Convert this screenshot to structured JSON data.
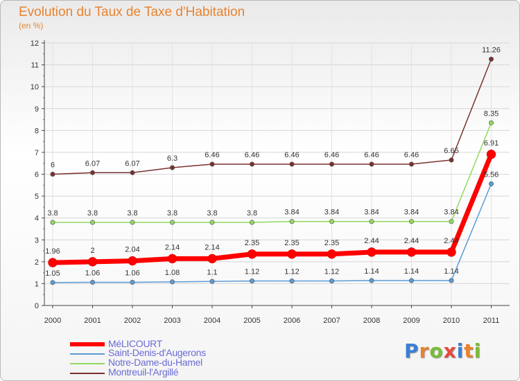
{
  "header": {
    "title": "Evolution du Taux de Taxe d'Habitation",
    "subtitle": "(en %)"
  },
  "logo": {
    "text": "Proxiti",
    "colors": [
      "#3a7fd5",
      "#e8832e",
      "#7bbb3a",
      "#e84a3a",
      "#3a7fd5",
      "#e8832e",
      "#7bbb3a"
    ]
  },
  "chart_data": {
    "type": "line",
    "title": "Evolution du Taux de Taxe d'Habitation",
    "subtitle": "(en %)",
    "xlabel": "",
    "ylabel": "",
    "x": [
      "2000",
      "2001",
      "2002",
      "2003",
      "2004",
      "2005",
      "2006",
      "2007",
      "2008",
      "2009",
      "2010",
      "2011"
    ],
    "y_ticks": [
      "0",
      "1",
      "2",
      "3",
      "4",
      "5",
      "6",
      "7",
      "8",
      "9",
      "10",
      "11",
      "12"
    ],
    "ylim": [
      0,
      12
    ],
    "grid": true,
    "legend_placement": "bottom-left",
    "series": [
      {
        "name": "MéLICOURT",
        "color": "#ff0000",
        "values": [
          1.96,
          2,
          2.04,
          2.14,
          2.14,
          2.35,
          2.35,
          2.35,
          2.44,
          2.44,
          2.44,
          6.91
        ],
        "labels": [
          "1.96",
          "2",
          "2.04",
          "2.14",
          "2.14",
          "2.35",
          "2.35",
          "2.35",
          "2.44",
          "2.44",
          "2.44",
          "6.91"
        ]
      },
      {
        "name": "Saint-Denis-d'Augerons",
        "color": "#5a9bd5",
        "values": [
          1.05,
          1.06,
          1.06,
          1.08,
          1.1,
          1.12,
          1.12,
          1.12,
          1.14,
          1.14,
          1.14,
          5.56
        ],
        "labels": [
          "1.05",
          "1.06",
          "1.06",
          "1.08",
          "1.1",
          "1.12",
          "1.12",
          "1.12",
          "1.14",
          "1.14",
          "1.14",
          "5.56"
        ]
      },
      {
        "name": "Notre-Dame-du-Hamel",
        "color": "#90d860",
        "values": [
          3.8,
          3.8,
          3.8,
          3.8,
          3.8,
          3.8,
          3.84,
          3.84,
          3.84,
          3.84,
          3.84,
          8.35
        ],
        "labels": [
          "3.8",
          "3.8",
          "3.8",
          "3.8",
          "3.8",
          "3.8",
          "3.84",
          "3.84",
          "3.84",
          "3.84",
          "3.84",
          "8.35"
        ]
      },
      {
        "name": "Montreuil-l'Argillé",
        "color": "#7a3030",
        "values": [
          6,
          6.07,
          6.07,
          6.3,
          6.46,
          6.46,
          6.46,
          6.46,
          6.46,
          6.46,
          6.65,
          11.26
        ],
        "labels": [
          "6",
          "6.07",
          "6.07",
          "6.3",
          "6.46",
          "6.46",
          "6.46",
          "6.46",
          "6.46",
          "6.46",
          "6.65",
          "11.26"
        ]
      }
    ]
  }
}
